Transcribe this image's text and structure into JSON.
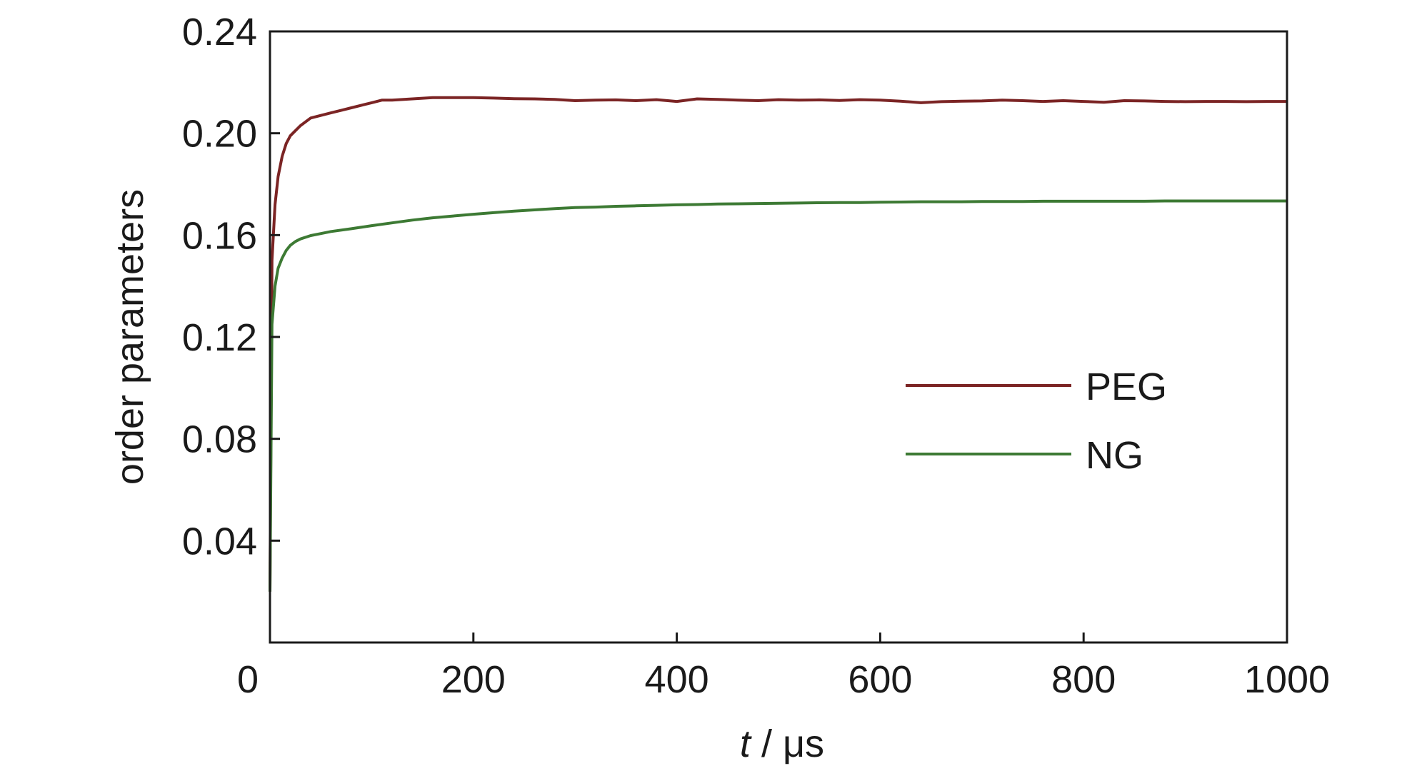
{
  "chart_data": {
    "type": "line",
    "title": "",
    "xlabel_italic": "t",
    "xlabel_rest": " / μs",
    "ylabel": "order parameters",
    "xlim": [
      0,
      1000
    ],
    "ylim": [
      0,
      0.24
    ],
    "x_ticks": [
      0,
      200,
      400,
      600,
      800,
      1000
    ],
    "x_tick_labels": [
      "0",
      "200",
      "400",
      "600",
      "800",
      "1000"
    ],
    "y_ticks": [
      0.04,
      0.08,
      0.12,
      0.16,
      0.2,
      0.24
    ],
    "y_tick_labels": [
      "0.04",
      "0.08",
      "0.12",
      "0.16",
      "0.20",
      "0.24"
    ],
    "grid": false,
    "legend_position": "right-center",
    "series": [
      {
        "name": "PEG",
        "color": "#7b2424",
        "x": [
          0,
          2,
          5,
          8,
          12,
          16,
          20,
          25,
          30,
          40,
          50,
          60,
          70,
          80,
          90,
          100,
          110,
          120,
          140,
          160,
          180,
          200,
          220,
          240,
          260,
          280,
          300,
          320,
          340,
          360,
          380,
          400,
          420,
          440,
          460,
          480,
          500,
          520,
          540,
          560,
          580,
          600,
          620,
          640,
          660,
          680,
          700,
          720,
          740,
          760,
          780,
          800,
          820,
          840,
          860,
          880,
          900,
          920,
          940,
          960,
          980,
          1000
        ],
        "y": [
          0.02,
          0.15,
          0.172,
          0.183,
          0.191,
          0.196,
          0.199,
          0.201,
          0.203,
          0.206,
          0.207,
          0.208,
          0.209,
          0.21,
          0.211,
          0.212,
          0.213,
          0.213,
          0.2135,
          0.214,
          0.214,
          0.214,
          0.2138,
          0.2136,
          0.2135,
          0.2133,
          0.2128,
          0.213,
          0.2131,
          0.2128,
          0.2132,
          0.2125,
          0.2135,
          0.2133,
          0.213,
          0.2128,
          0.2132,
          0.213,
          0.2131,
          0.2129,
          0.2132,
          0.213,
          0.2126,
          0.212,
          0.2124,
          0.2126,
          0.2127,
          0.213,
          0.2128,
          0.2125,
          0.2128,
          0.2125,
          0.2122,
          0.2128,
          0.2127,
          0.2125,
          0.2124,
          0.2125,
          0.2125,
          0.2124,
          0.2125,
          0.2125
        ]
      },
      {
        "name": "NG",
        "color": "#3d7a34",
        "x": [
          0,
          2,
          5,
          8,
          12,
          16,
          20,
          25,
          30,
          40,
          50,
          60,
          80,
          100,
          120,
          140,
          160,
          180,
          200,
          220,
          240,
          260,
          280,
          300,
          320,
          340,
          360,
          380,
          400,
          420,
          440,
          460,
          480,
          500,
          520,
          540,
          560,
          580,
          600,
          620,
          640,
          660,
          680,
          700,
          720,
          740,
          760,
          780,
          800,
          820,
          840,
          860,
          880,
          900,
          920,
          940,
          960,
          980,
          1000
        ],
        "y": [
          0.02,
          0.125,
          0.14,
          0.147,
          0.151,
          0.154,
          0.156,
          0.1575,
          0.1585,
          0.1598,
          0.1606,
          0.1614,
          0.1625,
          0.1637,
          0.1648,
          0.1659,
          0.1668,
          0.1675,
          0.1682,
          0.1688,
          0.1694,
          0.1699,
          0.1704,
          0.1708,
          0.171,
          0.1713,
          0.1715,
          0.1717,
          0.1719,
          0.172,
          0.1722,
          0.1723,
          0.1724,
          0.1725,
          0.1726,
          0.1727,
          0.1728,
          0.1728,
          0.1729,
          0.173,
          0.1731,
          0.1731,
          0.1731,
          0.1732,
          0.1732,
          0.1732,
          0.1733,
          0.1733,
          0.1733,
          0.1733,
          0.1733,
          0.1733,
          0.1734,
          0.1734,
          0.1734,
          0.1734,
          0.1734,
          0.1734,
          0.1734
        ]
      }
    ]
  }
}
